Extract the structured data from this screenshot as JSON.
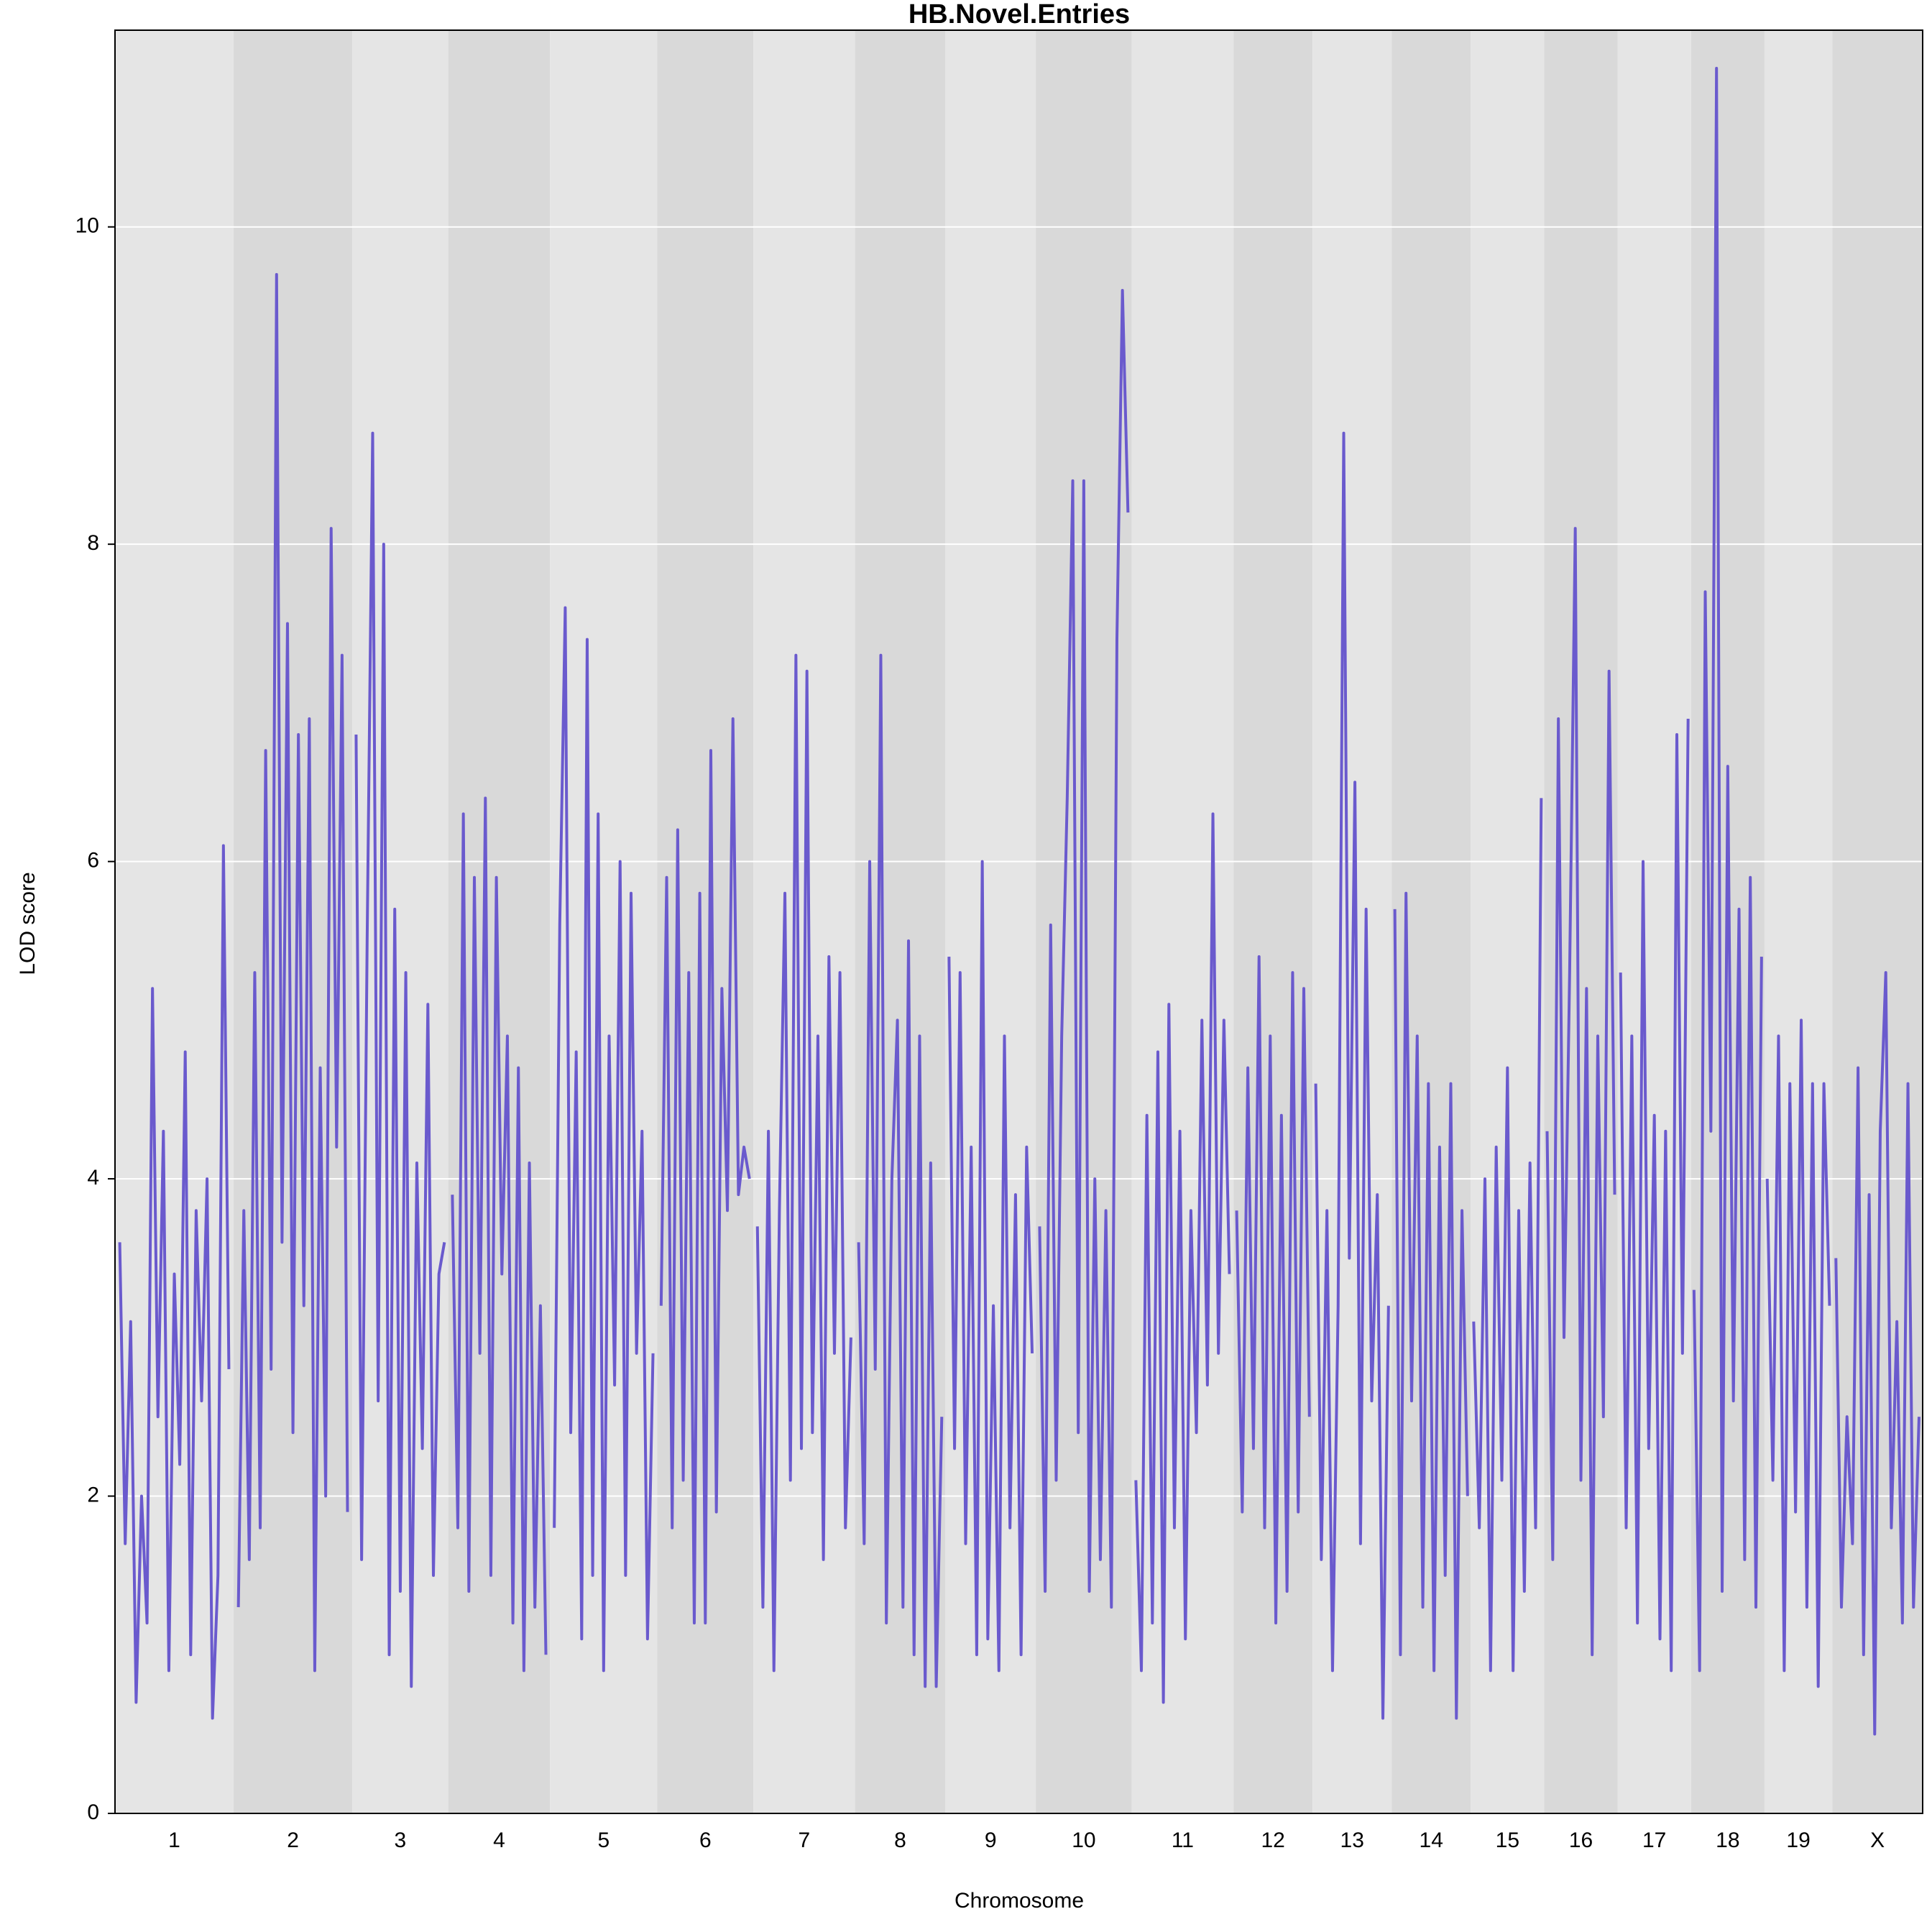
{
  "chart_data": {
    "type": "line",
    "title": "HB.Novel.Entries",
    "x_label": "Chromosome",
    "y_label": "LOD score",
    "color": "#6a5acd",
    "band_colors": [
      "#e5e5e5",
      "#d9d9d9"
    ],
    "grid": true,
    "ylim": [
      0,
      11.24
    ],
    "yticks": [
      0,
      2,
      4,
      6,
      8,
      10
    ],
    "chromosomes": [
      {
        "name": "1",
        "values": [
          3.6,
          1.7,
          3.1,
          0.7,
          2.0,
          1.2,
          5.2,
          2.5,
          4.3,
          0.9,
          3.4,
          2.2,
          4.8,
          1.0,
          3.8,
          2.6,
          4.0,
          0.6,
          1.5,
          6.1,
          2.8
        ]
      },
      {
        "name": "2",
        "values": [
          1.3,
          3.8,
          1.6,
          5.3,
          1.8,
          6.7,
          2.8,
          9.7,
          3.6,
          7.5,
          2.4,
          6.8,
          3.2,
          6.9,
          0.9,
          4.7,
          2.0,
          8.1,
          4.2,
          7.3,
          1.9
        ]
      },
      {
        "name": "3",
        "values": [
          6.8,
          1.6,
          5.5,
          8.7,
          2.6,
          8.0,
          1.0,
          5.7,
          1.4,
          5.3,
          0.8,
          4.1,
          2.3,
          5.1,
          1.5,
          3.4,
          3.6
        ]
      },
      {
        "name": "4",
        "values": [
          3.9,
          1.8,
          6.3,
          1.4,
          5.9,
          2.9,
          6.4,
          1.5,
          5.9,
          3.4,
          4.9,
          1.2,
          4.7,
          0.9,
          4.1,
          1.3,
          3.2,
          1.0
        ]
      },
      {
        "name": "5",
        "values": [
          1.8,
          5.6,
          7.6,
          2.4,
          4.8,
          1.1,
          7.4,
          1.5,
          6.3,
          0.9,
          4.9,
          2.7,
          6.0,
          1.5,
          5.8,
          2.9,
          4.3,
          1.1,
          2.9
        ]
      },
      {
        "name": "6",
        "values": [
          3.2,
          5.9,
          1.8,
          6.2,
          2.1,
          5.3,
          1.2,
          5.8,
          1.2,
          6.7,
          1.9,
          5.2,
          3.8,
          6.9,
          3.9,
          4.2,
          4.0
        ]
      },
      {
        "name": "7",
        "values": [
          3.7,
          1.3,
          4.3,
          0.9,
          3.8,
          5.8,
          2.1,
          7.3,
          2.3,
          7.2,
          2.4,
          4.9,
          1.6,
          5.4,
          2.9,
          5.3,
          1.8,
          3.0
        ]
      },
      {
        "name": "8",
        "values": [
          3.6,
          1.7,
          6.0,
          2.8,
          7.3,
          1.2,
          4.0,
          5.0,
          1.3,
          5.5,
          1.0,
          4.9,
          0.8,
          4.1,
          0.8,
          2.5
        ]
      },
      {
        "name": "9",
        "values": [
          5.4,
          2.3,
          5.3,
          1.7,
          4.2,
          1.0,
          6.0,
          1.1,
          3.2,
          0.9,
          4.9,
          1.8,
          3.9,
          1.0,
          4.2,
          2.9
        ]
      },
      {
        "name": "10",
        "values": [
          3.7,
          1.4,
          5.6,
          2.1,
          4.9,
          6.4,
          8.4,
          2.4,
          8.4,
          1.4,
          4.0,
          1.6,
          3.8,
          1.3,
          7.4,
          9.6,
          8.2
        ]
      },
      {
        "name": "11",
        "values": [
          2.1,
          0.9,
          4.4,
          1.2,
          4.8,
          0.7,
          5.1,
          1.8,
          4.3,
          1.1,
          3.8,
          2.4,
          5.0,
          2.7,
          6.3,
          2.9,
          5.0,
          3.4
        ]
      },
      {
        "name": "12",
        "values": [
          3.8,
          1.9,
          4.7,
          2.3,
          5.4,
          1.8,
          4.9,
          1.2,
          4.4,
          1.4,
          5.3,
          1.9,
          5.2,
          2.5
        ]
      },
      {
        "name": "13",
        "values": [
          4.6,
          1.6,
          3.8,
          0.9,
          3.2,
          8.7,
          3.5,
          6.5,
          1.7,
          5.7,
          2.6,
          3.9,
          0.6,
          3.2
        ]
      },
      {
        "name": "14",
        "values": [
          5.7,
          1.0,
          5.8,
          2.6,
          4.9,
          1.3,
          4.6,
          0.9,
          4.2,
          1.5,
          4.6,
          0.6,
          3.8,
          2.0
        ]
      },
      {
        "name": "15",
        "values": [
          3.1,
          1.8,
          4.0,
          0.9,
          4.2,
          2.1,
          4.7,
          0.9,
          3.8,
          1.4,
          4.1,
          1.8,
          6.4
        ]
      },
      {
        "name": "16",
        "values": [
          4.3,
          1.6,
          6.9,
          3.0,
          5.3,
          8.1,
          2.1,
          5.2,
          1.0,
          4.9,
          2.5,
          7.2,
          3.9
        ]
      },
      {
        "name": "17",
        "values": [
          5.3,
          1.8,
          4.9,
          1.2,
          6.0,
          2.3,
          4.4,
          1.1,
          4.3,
          0.9,
          6.8,
          2.9,
          6.9
        ]
      },
      {
        "name": "18",
        "values": [
          3.3,
          0.9,
          7.7,
          4.3,
          11.0,
          1.4,
          6.6,
          2.6,
          5.7,
          1.6,
          5.9,
          1.3,
          5.4
        ]
      },
      {
        "name": "19",
        "values": [
          4.0,
          2.1,
          4.9,
          0.9,
          4.6,
          1.9,
          5.0,
          1.3,
          4.6,
          0.8,
          4.6,
          3.2
        ]
      },
      {
        "name": "X",
        "values": [
          3.5,
          1.3,
          2.5,
          1.7,
          4.7,
          1.0,
          3.9,
          0.5,
          4.3,
          5.3,
          1.8,
          3.1,
          1.2,
          4.6,
          1.3,
          2.5
        ]
      }
    ]
  }
}
